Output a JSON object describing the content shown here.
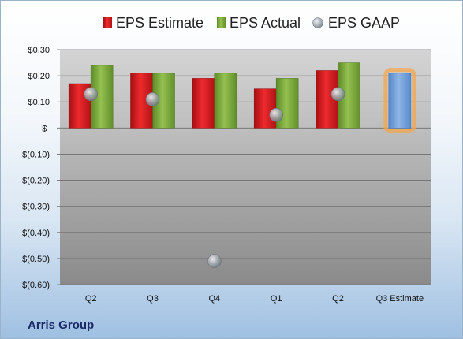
{
  "chart_data": {
    "type": "bar",
    "categories": [
      "Q2",
      "Q3",
      "Q4",
      "Q1",
      "Q2",
      "Q3 Estimate"
    ],
    "series": [
      {
        "name": "EPS Estimate",
        "values": [
          0.17,
          0.21,
          0.19,
          0.15,
          0.22,
          0.21
        ],
        "color": "#d8181c"
      },
      {
        "name": "EPS Actual",
        "values": [
          0.24,
          0.21,
          0.21,
          0.19,
          0.25,
          null
        ],
        "color": "#7aa83a"
      },
      {
        "name": "EPS GAAP",
        "values": [
          0.13,
          0.11,
          -0.51,
          0.05,
          0.13,
          null
        ],
        "color": "#9aa3ad"
      }
    ],
    "highlight": {
      "category_index": 5,
      "series_index": 0,
      "color": "#6f9fd8",
      "glow": "#f5a64a"
    },
    "y_ticks": [
      {
        "value": 0.3,
        "label": "$0.30"
      },
      {
        "value": 0.2,
        "label": "$0.20"
      },
      {
        "value": 0.1,
        "label": "$0.10"
      },
      {
        "value": 0.0,
        "label": "$-"
      },
      {
        "value": -0.1,
        "label": "$(0.10)"
      },
      {
        "value": -0.2,
        "label": "$(0.20)"
      },
      {
        "value": -0.3,
        "label": "$(0.30)"
      },
      {
        "value": -0.4,
        "label": "$(0.40)"
      },
      {
        "value": -0.5,
        "label": "$(0.50)"
      },
      {
        "value": -0.6,
        "label": "$(0.60)"
      }
    ],
    "ylim": [
      -0.6,
      0.3
    ],
    "grid": true,
    "legend_position": "top",
    "title": "",
    "xlabel": "",
    "ylabel": ""
  },
  "company_name": "Arris Group"
}
